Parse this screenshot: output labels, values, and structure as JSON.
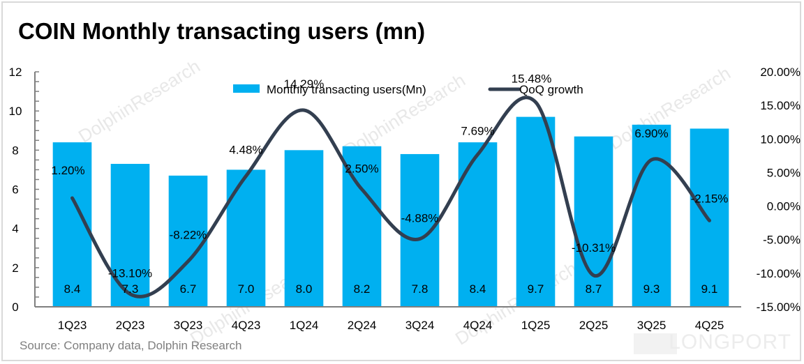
{
  "page": {
    "title": "COIN Monthly transacting users (mn)",
    "source": "Source:  Company data, Dolphin Research",
    "watermark_text": "DolphinResearch",
    "brand_text": "LONGPORT"
  },
  "colors": {
    "bar": "#00b0f0",
    "line": "#333f50",
    "axis": "#7f7f7f",
    "text": "#000000",
    "source_text": "#7f7f7f"
  },
  "chart_data": {
    "type": "bar",
    "title": "COIN Monthly transacting users (mn)",
    "categories": [
      "1Q23",
      "2Q23",
      "3Q23",
      "4Q23",
      "1Q24",
      "2Q24",
      "3Q24",
      "4Q24",
      "1Q25",
      "2Q25",
      "3Q25",
      "4Q25"
    ],
    "series": [
      {
        "name": "Monthly transacting users(Mn)",
        "type": "bar",
        "axis": "left",
        "values": [
          8.4,
          7.3,
          6.7,
          7.0,
          8.0,
          8.2,
          7.8,
          8.4,
          9.7,
          8.7,
          9.3,
          9.1
        ],
        "labels": [
          "8.4",
          "7.3",
          "6.7",
          "7.0",
          "8.0",
          "8.2",
          "7.8",
          "8.4",
          "9.7",
          "8.7",
          "9.3",
          "9.1"
        ]
      },
      {
        "name": "QoQ growth",
        "type": "line",
        "smooth": true,
        "axis": "right",
        "values": [
          1.2,
          -13.1,
          -8.22,
          4.48,
          14.29,
          2.5,
          -4.88,
          7.69,
          15.48,
          -10.31,
          6.9,
          -2.15
        ],
        "labels": [
          "1.20%",
          "-13.10%",
          "-8.22%",
          "4.48%",
          "14.29%",
          "2.50%",
          "-4.88%",
          "7.69%",
          "15.48%",
          "-10.31%",
          "6.90%",
          "-2.15%"
        ]
      }
    ],
    "xlabel": "",
    "ylabel": "",
    "ylim": [
      0,
      12
    ],
    "yticks": [
      0,
      2,
      4,
      6,
      8,
      10,
      12
    ],
    "ytick_labels": [
      "0",
      "2",
      "4",
      "6",
      "8",
      "10",
      "12"
    ],
    "y2lim": [
      -15,
      20
    ],
    "y2ticks": [
      -15,
      -10,
      -5,
      0,
      5,
      10,
      15,
      20
    ],
    "y2tick_labels": [
      "-15.00%",
      "-10.00%",
      "-5.00%",
      "0.00%",
      "5.00%",
      "10.00%",
      "15.00%",
      "20.00%"
    ],
    "grid": false,
    "legend": {
      "position": "top-center",
      "entries": [
        "Monthly transacting users(Mn)",
        "QoQ growth"
      ]
    }
  }
}
